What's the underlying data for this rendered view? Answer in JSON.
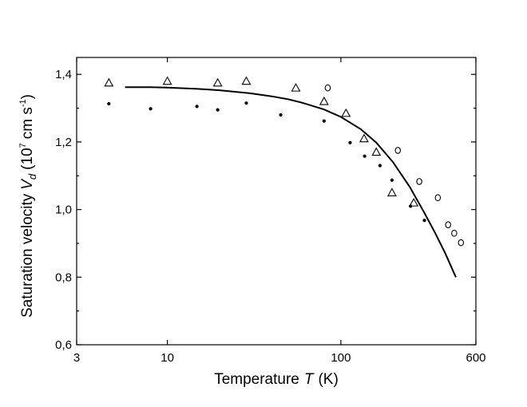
{
  "chart_data": {
    "type": "scatter",
    "title": "",
    "xlabel": {
      "text": "Temperature",
      "variable": "T",
      "unit": "(K)"
    },
    "ylabel": {
      "text": "Saturation velocity",
      "variable": "V",
      "subscript": "d",
      "unit_open": "(10",
      "unit_exp": "7",
      "unit_mid": "cm s",
      "unit_exp2": "-1",
      "unit_close": ")"
    },
    "x_scale": "log",
    "xlim": [
      3,
      600
    ],
    "ylim": [
      0.6,
      1.45
    ],
    "x_ticks": [
      {
        "value": 3,
        "label": "3"
      },
      {
        "value": 10,
        "label": "10"
      },
      {
        "value": 100,
        "label": "100"
      },
      {
        "value": 600,
        "label": "600"
      }
    ],
    "y_ticks": [
      {
        "value": 0.6,
        "label": "0,6"
      },
      {
        "value": 0.8,
        "label": "0,8"
      },
      {
        "value": 1.0,
        "label": "1,0"
      },
      {
        "value": 1.2,
        "label": "1,2"
      },
      {
        "value": 1.4,
        "label": "1,4"
      }
    ],
    "grid": false,
    "series": [
      {
        "marker": "triangle-open",
        "x": [
          4.6,
          10.0,
          19.5,
          28.5,
          55.0,
          80.0,
          107.0,
          136.0,
          160.0,
          197.0,
          263.0
        ],
        "y": [
          1.375,
          1.38,
          1.375,
          1.38,
          1.36,
          1.32,
          1.285,
          1.21,
          1.17,
          1.05,
          1.02
        ]
      },
      {
        "marker": "circle-open",
        "x": [
          84.0,
          213.0,
          283.0,
          362.0,
          415.0,
          450.0,
          492.0
        ],
        "y": [
          1.36,
          1.175,
          1.083,
          1.035,
          0.955,
          0.93,
          0.902
        ]
      },
      {
        "marker": "dot-filled",
        "x": [
          4.6,
          8.0,
          14.8,
          19.5,
          28.5,
          45.0,
          80.0,
          113.0,
          137.0,
          168.0,
          197.0,
          252.0,
          303.0
        ],
        "y": [
          1.313,
          1.298,
          1.305,
          1.295,
          1.315,
          1.28,
          1.262,
          1.198,
          1.158,
          1.13,
          1.087,
          1.01,
          0.968
        ]
      },
      {
        "marker": "line",
        "x": [
          5.7,
          8,
          10,
          15,
          20,
          30,
          40,
          50,
          60,
          80,
          100,
          130,
          160,
          200,
          250,
          300,
          350,
          400,
          460
        ],
        "y": [
          1.362,
          1.362,
          1.361,
          1.357,
          1.353,
          1.344,
          1.335,
          1.326,
          1.316,
          1.296,
          1.274,
          1.238,
          1.198,
          1.14,
          1.066,
          0.994,
          0.93,
          0.87,
          0.8
        ]
      }
    ]
  }
}
